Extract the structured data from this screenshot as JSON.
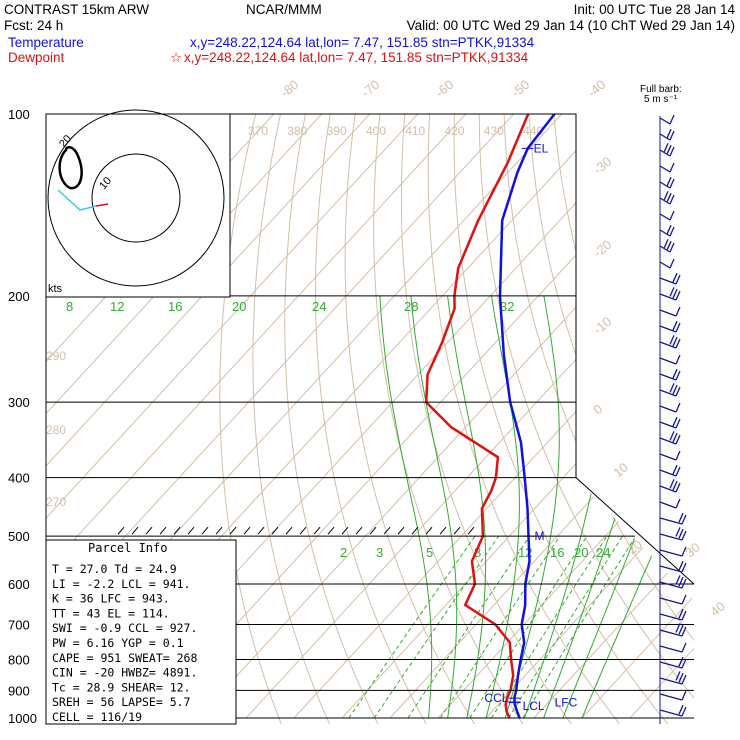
{
  "header": {
    "line1_left": "CONTRAST 15km ARW",
    "line1_center": "NCAR/MMM",
    "line1_right": "Init: 00 UTC Tue 28 Jan 14",
    "line2_left": "Fcst:    24 h",
    "line2_right": "Valid: 00 UTC Wed 29 Jan 14 (10 ChT Wed 29 Jan 14)",
    "temp_label": "Temperature",
    "temp_info": "x,y=248.22,124.64   lat,lon=  7.47, 151.85   stn=PTKK,91334",
    "dew_label": "Dewpoint",
    "dew_star": "☆",
    "dew_info": "x,y=248.22,124.64   lat,lon=  7.47, 151.85   stn=PTKK,91334",
    "barb_label_1": "Full barb:",
    "barb_label_2": "5 m s⁻¹"
  },
  "colors": {
    "temperature": "#1010e0",
    "dewpoint": "#e01010",
    "isotherm": "#d2bfa8",
    "dry_adiabat": "#d2bfa8",
    "moist_adiabat": "#33aa33",
    "mixing_ratio": "#33aa33",
    "isobar": "#000000",
    "barb": "#1414a0",
    "header_blue": "#1010e0",
    "header_red": "#e01010"
  },
  "chart_data": {
    "type": "skew-t",
    "title": "CONTRAST 15km ARW",
    "pressure_levels": [
      "100",
      "200",
      "300",
      "400",
      "500",
      "600",
      "700",
      "800",
      "900",
      "1000"
    ],
    "pressure_values": [
      100,
      200,
      300,
      400,
      500,
      600,
      700,
      800,
      900,
      1000
    ],
    "isotherm_labels": [
      "-80",
      "-70",
      "-60",
      "-50",
      "-40",
      "-30",
      "-20",
      "-10",
      "0",
      "10",
      "20",
      "30",
      "40"
    ],
    "theta_labels": [
      "370",
      "380",
      "390",
      "400",
      "410",
      "420",
      "430",
      "440"
    ],
    "theta_low_labels": [
      "290",
      "280",
      "270"
    ],
    "mixing_ratio_labels": [
      "2",
      "3",
      "5",
      "8",
      "12",
      "16",
      "20",
      "24"
    ],
    "theta_e_labels": [
      "8",
      "12",
      "16",
      "20",
      "24",
      "28",
      "32"
    ],
    "temperature_profile": [
      {
        "p": 1000,
        "t": 27.0
      },
      {
        "p": 975,
        "t": 25.2
      },
      {
        "p": 950,
        "t": 23.4
      },
      {
        "p": 925,
        "t": 22.0
      },
      {
        "p": 900,
        "t": 21.0
      },
      {
        "p": 850,
        "t": 18.5
      },
      {
        "p": 800,
        "t": 16.0
      },
      {
        "p": 750,
        "t": 13.5
      },
      {
        "p": 700,
        "t": 9.5
      },
      {
        "p": 650,
        "t": 6.5
      },
      {
        "p": 600,
        "t": 2.5
      },
      {
        "p": 550,
        "t": -1.0
      },
      {
        "p": 500,
        "t": -6.0
      },
      {
        "p": 450,
        "t": -11.5
      },
      {
        "p": 400,
        "t": -18.0
      },
      {
        "p": 350,
        "t": -25.5
      },
      {
        "p": 300,
        "t": -35.5
      },
      {
        "p": 250,
        "t": -46.0
      },
      {
        "p": 200,
        "t": -58.0
      },
      {
        "p": 175,
        "t": -64.5
      },
      {
        "p": 150,
        "t": -72.0
      },
      {
        "p": 125,
        "t": -78.0
      },
      {
        "p": 114,
        "t": -80.5
      },
      {
        "p": 100,
        "t": -81.5
      }
    ],
    "dewpoint_profile": [
      {
        "p": 1000,
        "t": 24.9
      },
      {
        "p": 975,
        "t": 23.0
      },
      {
        "p": 950,
        "t": 21.5
      },
      {
        "p": 925,
        "t": 20.5
      },
      {
        "p": 900,
        "t": 19.8
      },
      {
        "p": 850,
        "t": 17.5
      },
      {
        "p": 800,
        "t": 14.0
      },
      {
        "p": 750,
        "t": 10.5
      },
      {
        "p": 700,
        "t": 4.0
      },
      {
        "p": 650,
        "t": -6.0
      },
      {
        "p": 600,
        "t": -8.0
      },
      {
        "p": 550,
        "t": -13.0
      },
      {
        "p": 500,
        "t": -15.5
      },
      {
        "p": 450,
        "t": -21.0
      },
      {
        "p": 420,
        "t": -22.5
      },
      {
        "p": 400,
        "t": -24.0
      },
      {
        "p": 370,
        "t": -27.5
      },
      {
        "p": 330,
        "t": -43.0
      },
      {
        "p": 300,
        "t": -53.0
      },
      {
        "p": 270,
        "t": -58.0
      },
      {
        "p": 240,
        "t": -61.0
      },
      {
        "p": 210,
        "t": -65.0
      },
      {
        "p": 200,
        "t": -67.5
      },
      {
        "p": 180,
        "t": -72.0
      },
      {
        "p": 150,
        "t": -77.0
      },
      {
        "p": 120,
        "t": -82.0
      },
      {
        "p": 100,
        "t": -87.0
      }
    ],
    "markers": [
      {
        "label": "EL",
        "p": 114
      },
      {
        "label": "M",
        "p": 500
      },
      {
        "label": "CCL",
        "p": 927
      },
      {
        "label": "LCL",
        "p": 941
      },
      {
        "label": "LFC",
        "p": 943
      }
    ],
    "parcel_info": {
      "title": "Parcel Info",
      "rows": [
        "T   =   27.0  Td =  24.9",
        "LI  =   -2.2  LCL =  941.",
        "K   =     36  LFC =  943.",
        "TT  =     43  EL  =  114.",
        "SWI =   -0.9  CCL =  927.",
        "PW  =   6.16  YGP =   0.1",
        "CAPE =   951  SWEAT=  268",
        "CIN  =   -20  HWBZ= 4891.",
        "Tc  =   28.9  SHEAR=  12.",
        "SREH =    56  LAPSE=  5.7",
        "CELL = 116/19"
      ]
    },
    "hodograph": {
      "units_label": "kts",
      "ring_labels": [
        "10",
        "20"
      ]
    },
    "wind_barb_count": 38
  }
}
